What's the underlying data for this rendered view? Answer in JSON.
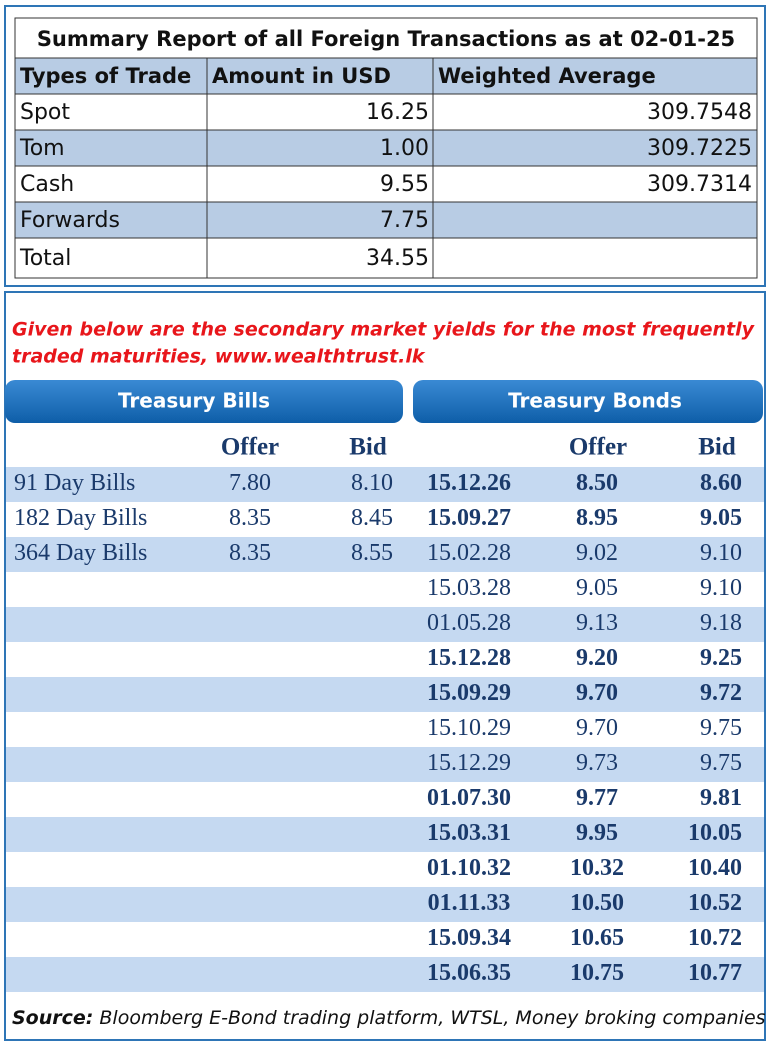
{
  "summary": {
    "title": "Summary Report of all Foreign Transactions as at 02-01-25",
    "headers": [
      "Types of Trade",
      "Amount in USD",
      "Weighted Average"
    ],
    "rows": [
      [
        "Spot",
        "16.25",
        "309.7548"
      ],
      [
        "Tom",
        "1.00",
        "309.7225"
      ],
      [
        "Cash",
        "9.55",
        "309.7314"
      ],
      [
        "Forwards",
        "7.75"
      ],
      [
        "Total",
        "34.55"
      ]
    ]
  },
  "note": [
    "Given below are the secondary market yields for the most frequently",
    "traded maturities, www.wealthtrust.lk"
  ],
  "bills": {
    "title": "Treasury Bills",
    "headers": [
      "Offer",
      "Bid"
    ],
    "rows": [
      [
        "91 Day Bills",
        "7.80",
        "8.10"
      ],
      [
        "182 Day Bills",
        "8.35",
        "8.45"
      ],
      [
        "364 Day Bills",
        "8.35",
        "8.55"
      ]
    ]
  },
  "bonds": {
    "title": "Treasury Bonds",
    "headers": [
      "Offer",
      "Bid"
    ],
    "rows": [
      {
        "cells": [
          "15.12.26",
          "8.50",
          "8.60"
        ],
        "bold": true
      },
      {
        "cells": [
          "15.09.27",
          "8.95",
          "9.05"
        ],
        "bold": true
      },
      {
        "cells": [
          "15.02.28",
          "9.02",
          "9.10"
        ],
        "bold": false
      },
      {
        "cells": [
          "15.03.28",
          "9.05",
          "9.10"
        ],
        "bold": false
      },
      {
        "cells": [
          "01.05.28",
          "9.13",
          "9.18"
        ],
        "bold": false
      },
      {
        "cells": [
          "15.12.28",
          "9.20",
          "9.25"
        ],
        "bold": true
      },
      {
        "cells": [
          "15.09.29",
          "9.70",
          "9.72"
        ],
        "bold": true
      },
      {
        "cells": [
          "15.10.29",
          "9.70",
          "9.75"
        ],
        "bold": false
      },
      {
        "cells": [
          "15.12.29",
          "9.73",
          "9.75"
        ],
        "bold": false
      },
      {
        "cells": [
          "01.07.30",
          "9.77",
          "9.81"
        ],
        "bold": true
      },
      {
        "cells": [
          "15.03.31",
          "9.95",
          "10.05"
        ],
        "bold": true
      },
      {
        "cells": [
          "01.10.32",
          "10.32",
          "10.40"
        ],
        "bold": true
      },
      {
        "cells": [
          "01.11.33",
          "10.50",
          "10.52"
        ],
        "bold": true
      },
      {
        "cells": [
          "15.09.34",
          "10.65",
          "10.72"
        ],
        "bold": true
      },
      {
        "cells": [
          "15.06.35",
          "10.75",
          "10.77"
        ],
        "bold": true
      }
    ]
  },
  "source": {
    "label": "Source:",
    "text": "Bloomberg E-Bond trading platform, WTSL, Money broking companies"
  }
}
